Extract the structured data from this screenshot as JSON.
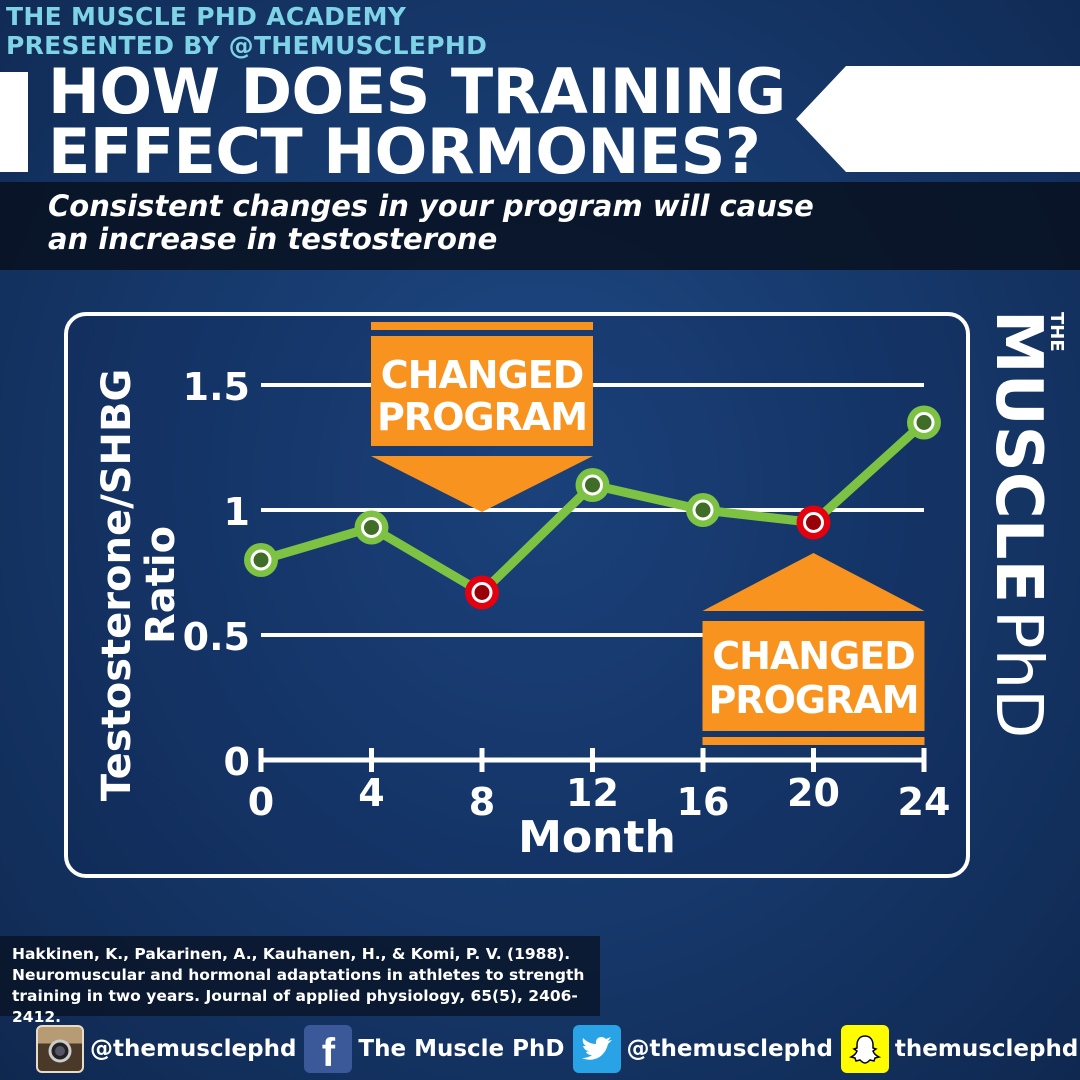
{
  "header": {
    "academy_line1": "THE MUSCLE PHD ACADEMY",
    "academy_line2": "PRESENTED BY @THEMUSCLEPHD",
    "title_line1": "HOW DOES TRAINING",
    "title_line2": "EFFECT HORMONES?",
    "subtitle_line1": "Consistent changes in your program will cause",
    "subtitle_line2": "an increase in testosterone"
  },
  "brand": {
    "small": "THE",
    "bold": "MUSCLE",
    "thin": "PhD"
  },
  "chart_data": {
    "type": "line",
    "xlabel": "Month",
    "ylabel_line1": "Testosterone/SHBG",
    "ylabel_line2": "Ratio",
    "x_ticks": [
      "0",
      "4",
      "8",
      "12",
      "16",
      "20",
      "24"
    ],
    "y_ticks": [
      "0",
      "0.5",
      "1",
      "1.5"
    ],
    "xlim": [
      0,
      24
    ],
    "ylim": [
      0,
      1.5
    ],
    "grid": true,
    "series": [
      {
        "x": [
          0,
          4,
          8,
          12,
          16,
          20,
          24
        ],
        "y": [
          0.8,
          0.93,
          0.67,
          1.1,
          1.0,
          0.95,
          1.35
        ],
        "line_color": "#7dc242",
        "highlight_color": "#e3000f",
        "highlight_x": [
          8,
          20
        ]
      }
    ],
    "annotations": [
      {
        "x": 8,
        "line1": "CHANGED",
        "line2": "PROGRAM",
        "direction": "down"
      },
      {
        "x": 20,
        "line1": "CHANGED",
        "line2": "PROGRAM",
        "direction": "up"
      }
    ],
    "annotation_color": "#f7931e"
  },
  "citation": "Hakkinen, K., Pakarinen, A., Kauhanen, H., & Komi, P. V. (1988).\nNeuromuscular and hormonal adaptations in athletes to strength\ntraining in two years. Journal of applied physiology, 65(5), 2406-2412.",
  "social": {
    "instagram": "@themusclephd",
    "facebook": "The Muscle PhD",
    "twitter": "@themusclephd",
    "snapchat": "themusclephd",
    "facebook_glyph": "f"
  }
}
